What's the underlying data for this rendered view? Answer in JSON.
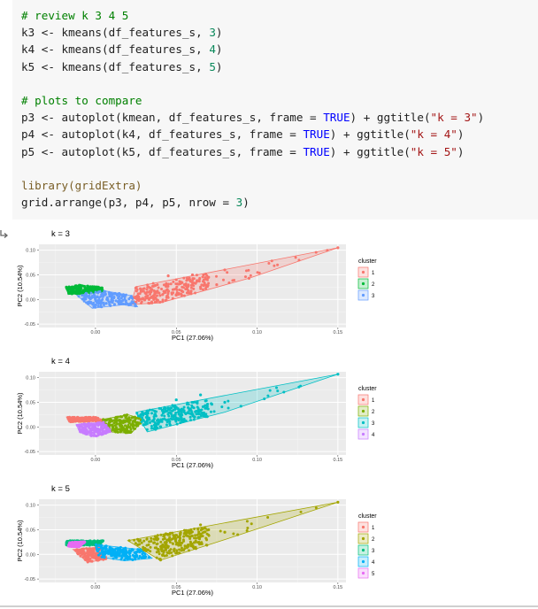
{
  "code": {
    "lines": [
      {
        "parts": [
          {
            "t": "# review k 3 4 5",
            "c": "cm"
          }
        ]
      },
      {
        "parts": [
          {
            "t": "k3 <- kmeans(df_features_s, ",
            "c": ""
          },
          {
            "t": "3",
            "c": "nm"
          },
          {
            "t": ")",
            "c": ""
          }
        ]
      },
      {
        "parts": [
          {
            "t": "k4 <- kmeans(df_features_s, ",
            "c": ""
          },
          {
            "t": "4",
            "c": "nm"
          },
          {
            "t": ")",
            "c": ""
          }
        ]
      },
      {
        "parts": [
          {
            "t": "k5 <- kmeans(df_features_s, ",
            "c": ""
          },
          {
            "t": "5",
            "c": "nm"
          },
          {
            "t": ")",
            "c": ""
          }
        ]
      },
      {
        "parts": [
          {
            "t": "",
            "c": ""
          }
        ]
      },
      {
        "parts": [
          {
            "t": "# plots to compare",
            "c": "cm"
          }
        ]
      },
      {
        "parts": [
          {
            "t": "p3 <- autoplot(kmean, df_features_s, frame = ",
            "c": ""
          },
          {
            "t": "TRUE",
            "c": "kw"
          },
          {
            "t": ") + ggtitle(",
            "c": ""
          },
          {
            "t": "\"k = 3\"",
            "c": "st"
          },
          {
            "t": ")",
            "c": ""
          }
        ]
      },
      {
        "parts": [
          {
            "t": "p4 <- autoplot(k4, df_features_s, frame = ",
            "c": ""
          },
          {
            "t": "TRUE",
            "c": "kw"
          },
          {
            "t": ") + ggtitle(",
            "c": ""
          },
          {
            "t": "\"k = 4\"",
            "c": "st"
          },
          {
            "t": ")",
            "c": ""
          }
        ]
      },
      {
        "parts": [
          {
            "t": "p5 <- autoplot(k5, df_features_s, frame = ",
            "c": ""
          },
          {
            "t": "TRUE",
            "c": "kw"
          },
          {
            "t": ") + ggtitle(",
            "c": ""
          },
          {
            "t": "\"k = 5\"",
            "c": "st"
          },
          {
            "t": ")",
            "c": ""
          }
        ]
      },
      {
        "parts": [
          {
            "t": "",
            "c": ""
          }
        ]
      },
      {
        "parts": [
          {
            "t": "library(gridExtra)",
            "c": "fn"
          }
        ]
      },
      {
        "parts": [
          {
            "t": "grid.arrange(p3, p4, p5, nrow = ",
            "c": ""
          },
          {
            "t": "3",
            "c": "nm"
          },
          {
            "t": ")",
            "c": ""
          }
        ]
      }
    ]
  },
  "chart_data": [
    {
      "type": "scatter",
      "title": "k = 3",
      "xlabel": "PC1 (27.06%)",
      "ylabel": "PC2 (10.54%)",
      "xlim": [
        -0.035,
        0.155
      ],
      "ylim": [
        -0.057,
        0.112
      ],
      "xticks": [
        "0.00",
        "0.05",
        "0.10",
        "0.15"
      ],
      "yticks": [
        "0.10",
        "0.05",
        "0.00",
        "-0.05"
      ],
      "legend_title": "cluster",
      "legend_position": "right",
      "series": [
        {
          "name": "1",
          "color": "#F8766D",
          "hull": [
            [
              0.15,
              0.105
            ],
            [
              0.025,
              0.026
            ],
            [
              0.022,
              -0.01
            ],
            [
              0.04,
              -0.007
            ],
            [
              0.095,
              0.043
            ]
          ],
          "points": [
            [
              0.15,
              0.105
            ],
            [
              0.08,
              0.06
            ],
            [
              0.095,
              0.043
            ],
            [
              0.07,
              0.045
            ],
            [
              0.06,
              0.05
            ],
            [
              0.045,
              0.048
            ],
            [
              0.055,
              0.03
            ],
            [
              0.065,
              0.025
            ],
            [
              0.075,
              0.03
            ],
            [
              0.05,
              0.04
            ]
          ]
        },
        {
          "name": "2",
          "color": "#00BA38",
          "hull": [
            [
              -0.018,
              0.025
            ],
            [
              -0.01,
              0.029
            ],
            [
              0.004,
              0.025
            ],
            [
              0.005,
              0.015
            ],
            [
              -0.017,
              0.01
            ]
          ],
          "points": [
            [
              -0.018,
              0.025
            ],
            [
              -0.01,
              0.029
            ]
          ]
        },
        {
          "name": "3",
          "color": "#619CFF",
          "hull": [
            [
              -0.012,
              0.01
            ],
            [
              0.005,
              0.018
            ],
            [
              0.022,
              0.008
            ],
            [
              0.026,
              -0.015
            ],
            [
              0.017,
              -0.011
            ],
            [
              -0.002,
              -0.018
            ]
          ],
          "points": []
        }
      ]
    },
    {
      "type": "scatter",
      "title": "k = 4",
      "xlabel": "PC1 (27.06%)",
      "ylabel": "PC2 (10.54%)",
      "xlim": [
        -0.035,
        0.155
      ],
      "ylim": [
        -0.057,
        0.112
      ],
      "xticks": [
        "0.00",
        "0.05",
        "0.10",
        "0.15"
      ],
      "yticks": [
        "0.10",
        "0.05",
        "0.00",
        "-0.05"
      ],
      "legend_title": "cluster",
      "legend_position": "right",
      "series": [
        {
          "name": "1",
          "color": "#F8766D",
          "hull": [
            [
              -0.018,
              0.02
            ],
            [
              0.0,
              0.02
            ],
            [
              0.007,
              0.012
            ],
            [
              -0.016,
              0.01
            ]
          ],
          "points": []
        },
        {
          "name": "2",
          "color": "#7CAE00",
          "hull": [
            [
              0.004,
              0.015
            ],
            [
              0.02,
              0.025
            ],
            [
              0.03,
              0.015
            ],
            [
              0.022,
              -0.013
            ],
            [
              0.008,
              -0.01
            ]
          ],
          "points": []
        },
        {
          "name": "3",
          "color": "#00BFC4",
          "hull": [
            [
              0.15,
              0.107
            ],
            [
              0.025,
              0.03
            ],
            [
              0.032,
              -0.01
            ],
            [
              0.08,
              0.03
            ]
          ],
          "points": [
            [
              0.15,
              0.107
            ],
            [
              0.065,
              0.065
            ],
            [
              0.08,
              0.05
            ],
            [
              0.072,
              0.046
            ],
            [
              0.09,
              0.042
            ],
            [
              0.06,
              0.04
            ],
            [
              0.05,
              0.055
            ],
            [
              0.045,
              0.035
            ]
          ]
        },
        {
          "name": "4",
          "color": "#C77CFF",
          "hull": [
            [
              -0.012,
              0.005
            ],
            [
              0.005,
              0.01
            ],
            [
              0.01,
              -0.01
            ],
            [
              -0.001,
              -0.02
            ],
            [
              -0.01,
              -0.01
            ]
          ],
          "points": []
        }
      ]
    },
    {
      "type": "scatter",
      "title": "k = 5",
      "xlabel": "PC1 (27.06%)",
      "ylabel": "PC2 (10.54%)",
      "xlim": [
        -0.035,
        0.155
      ],
      "ylim": [
        -0.057,
        0.112
      ],
      "xticks": [
        "0.00",
        "0.05",
        "0.10",
        "0.15"
      ],
      "yticks": [
        "0.10",
        "0.05",
        "0.00",
        "-0.05"
      ],
      "legend_title": "cluster",
      "legend_position": "right",
      "series": [
        {
          "name": "1",
          "color": "#F8766D",
          "hull": [
            [
              -0.014,
              0.01
            ],
            [
              0.004,
              0.015
            ],
            [
              0.007,
              -0.01
            ],
            [
              -0.005,
              -0.016
            ]
          ],
          "points": []
        },
        {
          "name": "2",
          "color": "#A3A500",
          "hull": [
            [
              0.15,
              0.106
            ],
            [
              0.02,
              0.028
            ],
            [
              0.04,
              -0.012
            ],
            [
              0.08,
              0.03
            ]
          ],
          "points": [
            [
              0.15,
              0.106
            ],
            [
              0.065,
              0.06
            ],
            [
              0.08,
              0.045
            ],
            [
              0.07,
              0.05
            ],
            [
              0.055,
              0.042
            ],
            [
              0.088,
              0.04
            ]
          ]
        },
        {
          "name": "3",
          "color": "#00BF7D",
          "hull": [
            [
              -0.018,
              0.028
            ],
            [
              0.005,
              0.028
            ],
            [
              0.002,
              0.018
            ],
            [
              -0.018,
              0.018
            ]
          ],
          "points": []
        },
        {
          "name": "4",
          "color": "#00B0F6",
          "hull": [
            [
              0.0,
              0.02
            ],
            [
              0.028,
              0.01
            ],
            [
              0.035,
              -0.008
            ],
            [
              0.018,
              -0.013
            ],
            [
              0.002,
              -0.005
            ]
          ],
          "points": []
        },
        {
          "name": "5",
          "color": "#E76BF3",
          "hull": [
            [
              -0.016,
              0.025
            ],
            [
              -0.006,
              0.026
            ],
            [
              -0.01,
              0.015
            ],
            [
              -0.017,
              0.016
            ]
          ],
          "points": []
        }
      ]
    }
  ]
}
